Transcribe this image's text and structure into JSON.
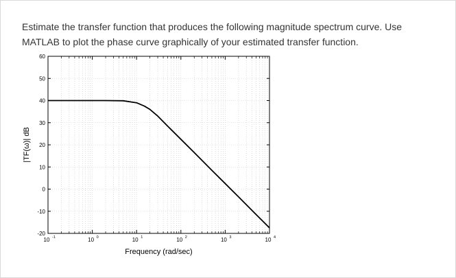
{
  "question": {
    "line1": "Estimate the transfer function that produces the following magnitude spectrum curve. Use",
    "line2": "MATLAB to plot the phase curve graphically of your estimated transfer function."
  },
  "chart_data": {
    "type": "line",
    "title": "",
    "xlabel": "Frequency (rad/sec)",
    "ylabel": "|TF(ω)| dB",
    "x_scale": "log",
    "xlim": [
      0.1,
      10000
    ],
    "ylim": [
      -20,
      60
    ],
    "x_ticks": [
      {
        "value": 0.1,
        "base": "10",
        "exp": "-1"
      },
      {
        "value": 1,
        "base": "10",
        "exp": "0"
      },
      {
        "value": 10,
        "base": "10",
        "exp": "1"
      },
      {
        "value": 100,
        "base": "10",
        "exp": "2"
      },
      {
        "value": 1000,
        "base": "10",
        "exp": "3"
      },
      {
        "value": 10000,
        "base": "10",
        "exp": "4"
      }
    ],
    "y_ticks": [
      -20,
      -10,
      0,
      10,
      20,
      30,
      40,
      50,
      60
    ],
    "grid": true,
    "series": [
      {
        "x": [
          0.1,
          0.5,
          1,
          2,
          5,
          10,
          15,
          20,
          30,
          50,
          100,
          200,
          500,
          1000,
          2000,
          5000,
          10000
        ],
        "y": [
          40,
          40,
          40,
          40,
          39.9,
          39.0,
          37.5,
          36.0,
          33.0,
          28.5,
          22.5,
          16.5,
          8.5,
          2.5,
          -3.5,
          -11.5,
          -17.5
        ],
        "color": "#000000"
      }
    ]
  }
}
